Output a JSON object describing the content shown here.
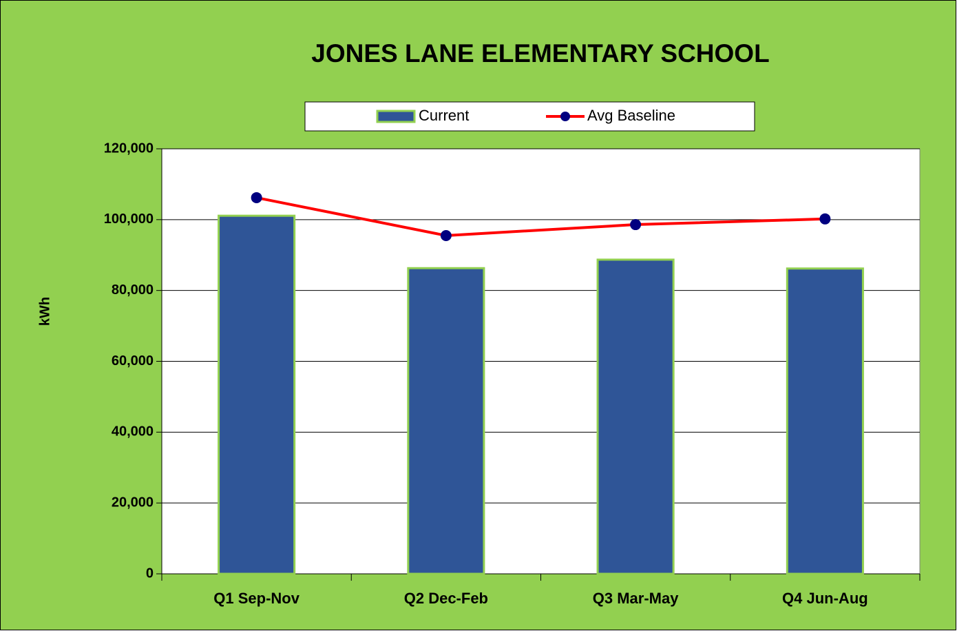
{
  "chart_data": {
    "type": "bar",
    "title": "JONES LANE ELEMENTARY SCHOOL",
    "y_label": "kWh",
    "categories": [
      "Q1 Sep-Nov",
      "Q2 Dec-Feb",
      "Q3 Mar-May",
      "Q4 Jun-Aug"
    ],
    "series": [
      {
        "name": "Current",
        "type": "bar",
        "color": "#2f5597",
        "values": [
          101100,
          86300,
          88700,
          86200
        ]
      },
      {
        "name": "Avg Baseline",
        "type": "line",
        "color": "#ff0000",
        "marker_color": "#000080",
        "values": [
          106200,
          95500,
          98600,
          100200
        ]
      }
    ],
    "ylim": [
      0,
      120000
    ],
    "yticks": [
      0,
      {
        "value": 20000,
        "label": "20,000"
      },
      {
        "value": 40000,
        "label": "40,000"
      },
      {
        "value": 60000,
        "label": "60,000"
      },
      {
        "value": 80000,
        "label": "80,000"
      },
      {
        "value": 100000,
        "label": "100,000"
      },
      {
        "value": 120000,
        "label": "120,000"
      }
    ],
    "grid": true,
    "legend": "top"
  }
}
